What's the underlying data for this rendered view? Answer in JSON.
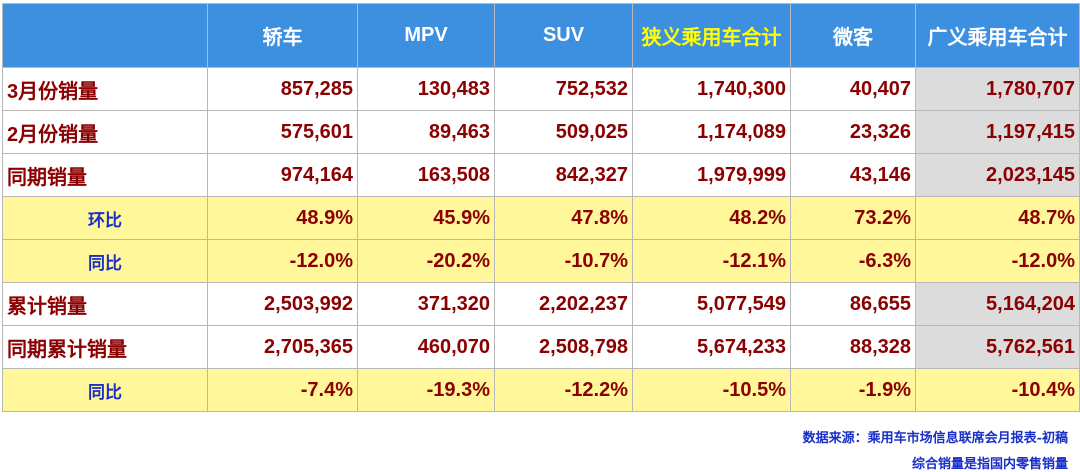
{
  "chart_data": {
    "type": "table",
    "columns": [
      "",
      "轿车",
      "MPV",
      "SUV",
      "狭义乘用车合计",
      "微客",
      "广义乘用车合计"
    ],
    "rows": [
      {
        "label": "3月份销量",
        "kind": "value",
        "cells": [
          "857,285",
          "130,483",
          "752,532",
          "1,740,300",
          "40,407",
          "1,780,707"
        ]
      },
      {
        "label": "2月份销量",
        "kind": "value",
        "cells": [
          "575,601",
          "89,463",
          "509,025",
          "1,174,089",
          "23,326",
          "1,197,415"
        ]
      },
      {
        "label": "同期销量",
        "kind": "value",
        "cells": [
          "974,164",
          "163,508",
          "842,327",
          "1,979,999",
          "43,146",
          "2,023,145"
        ]
      },
      {
        "label": "环比",
        "kind": "ratio",
        "cells": [
          "48.9%",
          "45.9%",
          "47.8%",
          "48.2%",
          "73.2%",
          "48.7%"
        ]
      },
      {
        "label": "同比",
        "kind": "ratio",
        "cells": [
          "-12.0%",
          "-20.2%",
          "-10.7%",
          "-12.1%",
          "-6.3%",
          "-12.0%"
        ]
      },
      {
        "label": "累计销量",
        "kind": "value",
        "cells": [
          "2,503,992",
          "371,320",
          "2,202,237",
          "5,077,549",
          "86,655",
          "5,164,204"
        ]
      },
      {
        "label": "同期累计销量",
        "kind": "value",
        "cells": [
          "2,705,365",
          "460,070",
          "2,508,798",
          "5,674,233",
          "88,328",
          "5,762,561"
        ]
      },
      {
        "label": "同比",
        "kind": "ratio",
        "cells": [
          "-7.4%",
          "-19.3%",
          "-12.2%",
          "-10.5%",
          "-1.9%",
          "-10.4%"
        ]
      }
    ],
    "highlight_column": "狭义乘用车合计",
    "colors": {
      "header_bg": "#3d8fe0",
      "header_text": "#ffffff",
      "header_highlight_text": "#ffff00",
      "value_text": "#8b0000",
      "ratio_row_bg": "#fff799",
      "ratio_label_text": "#1a2fc8",
      "last_column_bg": "#dcdcdc",
      "note_text": "#1a2fc8"
    }
  },
  "notes": {
    "source": "数据来源：乘用车市场信息联席会月报表-初稿",
    "definition": "综合销量是指国内零售销量"
  }
}
